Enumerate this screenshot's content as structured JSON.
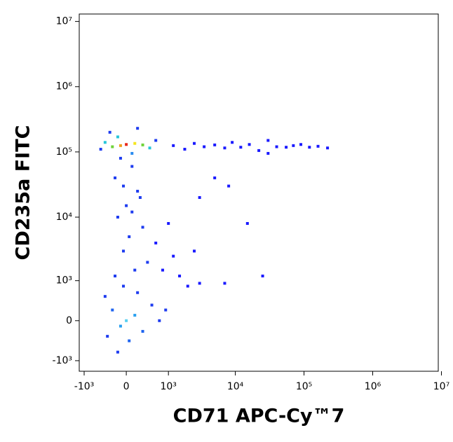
{
  "chart_data": {
    "type": "scatter",
    "x_label": "CD71 APC-Cy™7",
    "y_label": "CD235a FITC",
    "scale": "biexponential",
    "xlim": [
      -1200,
      9000000
    ],
    "ylim": [
      -1500,
      13000000
    ],
    "xticks": [
      {
        "value": -1000,
        "label": "-10³"
      },
      0,
      {
        "value": 1000,
        "label": "10³"
      },
      {
        "value": 10000,
        "label": "10⁴"
      },
      {
        "value": 100000,
        "label": "10⁵"
      },
      {
        "value": 1000000,
        "label": "10⁶"
      },
      {
        "value": 10000000,
        "label": "10⁷"
      }
    ],
    "yticks": [
      {
        "value": -1000,
        "label": "-10³"
      },
      0,
      {
        "value": 1000,
        "label": "10³"
      },
      {
        "value": 10000,
        "label": "10⁴"
      },
      {
        "value": 100000,
        "label": "10⁵"
      },
      {
        "value": 1000000,
        "label": "10⁶"
      },
      {
        "value": 10000000,
        "label": "10⁷"
      }
    ],
    "x": [
      0,
      -100,
      150,
      -250,
      300,
      -400,
      450,
      -500,
      600,
      -300,
      200,
      100,
      -150,
      1200,
      1800,
      2500,
      3500,
      5000,
      7000,
      9000,
      12000,
      16000,
      22000,
      30000,
      40000,
      55000,
      70000,
      90000,
      120000,
      160000,
      220000,
      30000,
      -100,
      100,
      -200,
      200,
      0,
      -150,
      300,
      50,
      -50,
      400,
      150,
      -200,
      250,
      -50,
      100,
      0,
      -100,
      150,
      -250,
      300,
      -350,
      500,
      700,
      -150,
      200,
      -400,
      900,
      50,
      -50,
      800,
      1500,
      2000,
      1200,
      2500,
      3000,
      600,
      1000,
      3000,
      5000,
      8000,
      7000,
      25000,
      15000
    ],
    "y": [
      130000,
      125000,
      135000,
      120000,
      128000,
      140000,
      115000,
      110000,
      150000,
      200000,
      230000,
      95000,
      170000,
      125000,
      110000,
      135000,
      120000,
      128000,
      115000,
      140000,
      118000,
      130000,
      105000,
      150000,
      120000,
      118000,
      125000,
      130000,
      118000,
      122000,
      115000,
      95000,
      80000,
      60000,
      40000,
      25000,
      15000,
      10000,
      7000,
      5000,
      3000,
      2000,
      1500,
      1200,
      20000,
      30000,
      12000,
      0,
      -100,
      100,
      200,
      -200,
      -300,
      300,
      0,
      -700,
      600,
      500,
      200,
      -400,
      800,
      1500,
      1200,
      800,
      2500,
      3000,
      900,
      4000,
      8000,
      20000,
      40000,
      30000,
      900,
      1200,
      8000
    ],
    "colors": [
      "#e8281c",
      "#f0a020",
      "#f5e61e",
      "#6fd33a",
      "#6fd33a",
      "#27c6d9",
      "#27c6d9",
      "#1e3cf0",
      "#1e3cf0",
      "#1e3cf0",
      "#1e3cf0",
      "#2a8cf0",
      "#27c6d9",
      "#1a1aff",
      "#1a1aff",
      "#1a1aff",
      "#1a1aff",
      "#1a1aff",
      "#1a1aff",
      "#1a1aff",
      "#1a1aff",
      "#1a1aff",
      "#1a1aff",
      "#1a1aff",
      "#1a1aff",
      "#1a1aff",
      "#1a1aff",
      "#1a1aff",
      "#1a1aff",
      "#1a1aff",
      "#1a1aff",
      "#1a1aff",
      "#1e3cf0",
      "#1e3cf0",
      "#1e3cf0",
      "#1e3cf0",
      "#1e3cf0",
      "#1e3cf0",
      "#1e3cf0",
      "#1e3cf0",
      "#1e3cf0",
      "#1e3cf0",
      "#1e3cf0",
      "#1e3cf0",
      "#1e3cf0",
      "#1e3cf0",
      "#1e3cf0",
      "#5ad0f0",
      "#2aa0f0",
      "#2aa0f0",
      "#1e64f0",
      "#1e64f0",
      "#1e3cf0",
      "#1e3cf0",
      "#1e3cf0",
      "#1e3cf0",
      "#1e3cf0",
      "#1e3cf0",
      "#1e3cf0",
      "#1e64f0",
      "#1e3cf0",
      "#1a1aff",
      "#1a1aff",
      "#1a1aff",
      "#1a1aff",
      "#1a1aff",
      "#1a1aff",
      "#1a1aff",
      "#1a1aff",
      "#1a1aff",
      "#1a1aff",
      "#1a1aff",
      "#1a1aff",
      "#1a1aff",
      "#1a1aff"
    ]
  }
}
